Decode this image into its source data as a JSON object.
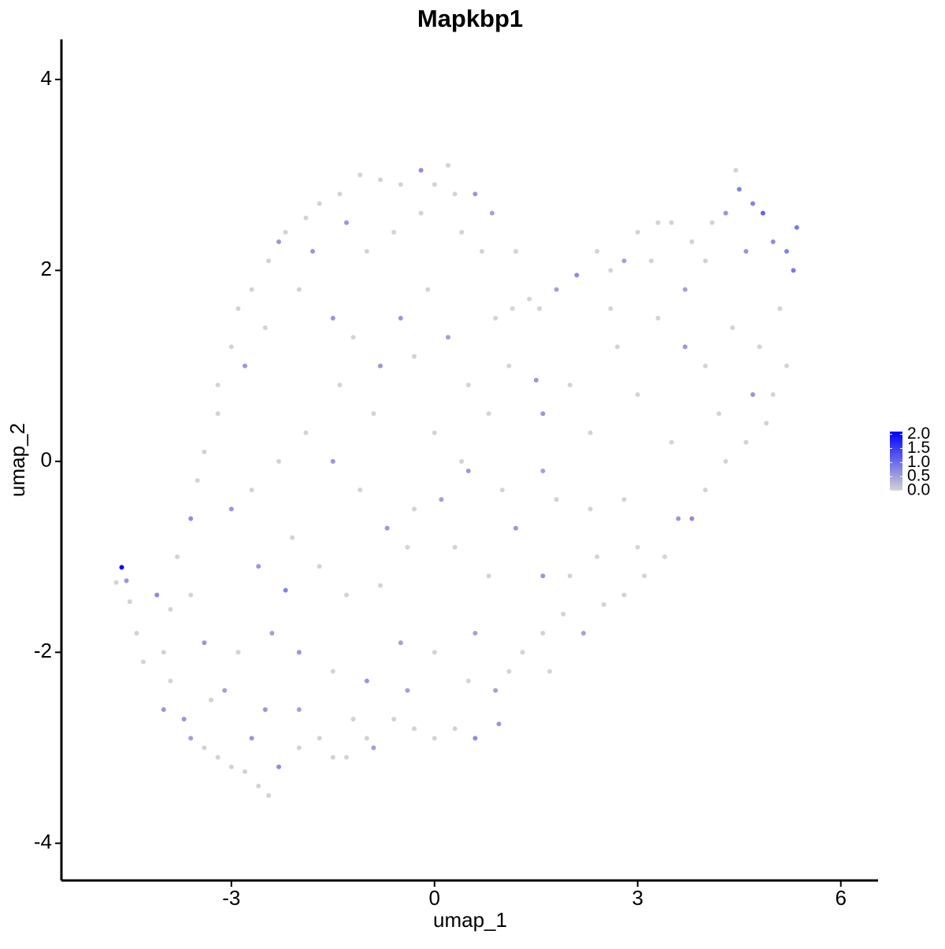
{
  "chart_data": {
    "type": "scatter",
    "title": "Mapkbp1",
    "x_label": "umap_1",
    "y_label": "umap_2",
    "xlim": [
      -5.51,
      6.55
    ],
    "ylim": [
      -4.39,
      4.42
    ],
    "xticks": [
      -3,
      0,
      3,
      6
    ],
    "yticks": [
      -4,
      -2,
      0,
      2,
      4
    ],
    "color_low": "#d3d3d3",
    "color_high": "#0000ff",
    "color_lim": [
      0,
      2.1
    ],
    "color_ticks": [
      {
        "value": 2,
        "label": "2.0"
      },
      {
        "value": 1.5,
        "label": "1.5"
      },
      {
        "value": 1,
        "label": "1.0"
      },
      {
        "value": 0.5,
        "label": "0.5"
      },
      {
        "value": 0,
        "label": "0.0"
      }
    ],
    "x": [
      -4.62,
      -4.55,
      -4.7,
      -4.5,
      -4.4,
      -4.1,
      -3.9,
      -4.0,
      -4.3,
      -4.0,
      -3.7,
      -3.6,
      -3.4,
      -3.2,
      -3.0,
      -2.8,
      -2.6,
      -2.45,
      -2.3,
      -2.0,
      -1.7,
      -1.5,
      -1.3,
      -1.0,
      -0.9,
      -0.6,
      -0.3,
      0,
      0.3,
      0.6,
      0.95,
      0.9,
      1.1,
      1.3,
      1.6,
      1.7,
      1.9,
      2.2,
      2.5,
      2.8,
      3.1,
      3.4,
      3.6,
      3.8,
      4.0,
      4.3,
      4.6,
      4.9,
      5.0,
      5.2,
      5.1,
      5.3,
      5.35,
      5.2,
      5.0,
      4.85,
      4.7,
      4.5,
      4.45,
      4.3,
      4.1,
      3.8,
      3.5,
      3.3,
      3.0,
      2.8,
      2.6,
      2.4,
      2.1,
      1.8,
      1.55,
      1.4,
      1.15,
      0.9,
      0.7,
      0.85,
      0.6,
      0.3,
      0.2,
      0.0,
      -0.2,
      -0.5,
      -0.8,
      -1.1,
      -1.4,
      -1.7,
      -1.9,
      -2.2,
      -2.45,
      -2.7,
      -2.9,
      -3.0,
      -3.2,
      -3.2,
      -3.4,
      -3.5,
      -3.6,
      -3.8,
      -3.6,
      -3.3,
      -2.8,
      -2.5,
      -2.0,
      -1.5,
      -1.2,
      -0.8,
      -0.5,
      -0.3,
      0.2,
      0.5,
      0.8,
      1.1,
      1.5,
      1.6,
      2.0,
      2.3,
      2.7,
      3.0,
      3.3,
      3.7,
      4.0,
      4.4,
      4.8,
      4.7,
      4.2,
      3.5,
      2.8,
      2.3,
      1.6,
      1.0,
      0.5,
      0.1,
      -0.3,
      -0.7,
      -1.1,
      -1.5,
      -1.9,
      -2.3,
      -2.7,
      -3.0,
      -2.6,
      -2.1,
      -1.7,
      -1.3,
      -0.8,
      -0.4,
      0.3,
      0.8,
      1.2,
      1.6,
      2.0,
      2.4,
      -2.2,
      -2.4,
      -2.0,
      -1.5,
      -1.0,
      -0.5,
      0.0,
      0.5,
      0.6,
      -2.9,
      -3.1,
      -2.5,
      -2.0,
      -2.7,
      -1.2,
      -0.4,
      -3.4,
      -3.9,
      -1.8,
      -1.0,
      -0.6,
      -0.2,
      0.4,
      -1.3,
      -2.3,
      -0.1,
      1.2,
      2.6,
      3.7,
      4.6,
      4.0,
      3.2,
      -0.9,
      0.0,
      0.4,
      -1.4,
      1.8,
      3.0
    ],
    "y": [
      -1.11,
      -1.25,
      -1.27,
      -1.47,
      -1.8,
      -1.4,
      -1.55,
      -2.0,
      -2.1,
      -2.6,
      -2.7,
      -2.9,
      -3.0,
      -3.1,
      -3.2,
      -3.25,
      -3.4,
      -3.5,
      -3.2,
      -3.0,
      -2.9,
      -3.1,
      -3.1,
      -2.9,
      -3.0,
      -2.7,
      -2.8,
      -2.9,
      -2.8,
      -2.9,
      -2.75,
      -2.4,
      -2.2,
      -2.0,
      -1.8,
      -2.2,
      -1.6,
      -1.8,
      -1.5,
      -1.4,
      -1.2,
      -1.0,
      -0.6,
      -0.6,
      -0.3,
      0,
      0.2,
      0.4,
      0.7,
      1.0,
      1.6,
      2.0,
      2.45,
      2.2,
      2.3,
      2.6,
      2.7,
      2.85,
      3.05,
      2.6,
      2.5,
      2.3,
      2.5,
      2.5,
      2.4,
      2.1,
      2.0,
      2.2,
      1.95,
      1.8,
      1.6,
      1.7,
      1.6,
      1.5,
      2.2,
      2.6,
      2.8,
      2.8,
      3.1,
      2.9,
      3.05,
      2.9,
      2.95,
      3.0,
      2.8,
      2.7,
      2.55,
      2.4,
      2.1,
      1.8,
      1.6,
      1.2,
      0.8,
      0.5,
      0.1,
      -0.2,
      -0.6,
      -1.0,
      -1.4,
      -2.5,
      1.0,
      1.4,
      1.8,
      1.5,
      1.3,
      1.0,
      1.5,
      1.1,
      1.3,
      0.8,
      0.5,
      1.0,
      0.85,
      0.5,
      0.8,
      0.3,
      1.2,
      0.7,
      1.5,
      1.2,
      1.0,
      1.4,
      1.2,
      0.7,
      0.5,
      0.2,
      -0.4,
      -0.5,
      -0.1,
      -0.3,
      -0.1,
      -0.4,
      -0.5,
      -0.7,
      -0.3,
      0.0,
      0.3,
      0.0,
      -0.3,
      -0.5,
      -1.1,
      -0.8,
      -1.1,
      -1.4,
      -1.3,
      -0.9,
      -0.9,
      -1.2,
      -0.7,
      -1.2,
      -1.2,
      -1.0,
      -1.35,
      -1.8,
      -2.0,
      -2.2,
      -2.3,
      -1.9,
      -2.0,
      -2.3,
      -1.8,
      -2.0,
      -2.4,
      -2.6,
      -2.6,
      -2.9,
      -2.7,
      -2.4,
      -1.9,
      -2.3,
      2.2,
      2.2,
      2.4,
      2.6,
      2.4,
      2.5,
      2.3,
      1.8,
      2.2,
      1.6,
      1.8,
      2.2,
      2.1,
      2.1,
      0.5,
      0.3,
      0.0,
      0.8,
      -0.4,
      -0.9
    ],
    "values": [
      2.1,
      0.6,
      0,
      0,
      0,
      0.7,
      0,
      0,
      0,
      0.6,
      0.6,
      0.5,
      0,
      0,
      0,
      0,
      0,
      0,
      0.7,
      0,
      0,
      0,
      0,
      0,
      0.5,
      0,
      0,
      0,
      0,
      0.7,
      0.6,
      0.5,
      0,
      0,
      0,
      0,
      0,
      0.5,
      0,
      0,
      0,
      0,
      0.6,
      0.7,
      0,
      0,
      0,
      0,
      0,
      0,
      0,
      0.9,
      0.9,
      0.8,
      0.7,
      1.1,
      0.8,
      0.8,
      0,
      0.6,
      0,
      0,
      0,
      0,
      0,
      0.5,
      0,
      0,
      0.7,
      0.5,
      0,
      0,
      0,
      0,
      0,
      0.5,
      0.6,
      0,
      0,
      0,
      0.7,
      0,
      0,
      0,
      0,
      0,
      0,
      0,
      0,
      0,
      0,
      0,
      0,
      0,
      0,
      0,
      0.7,
      0,
      0,
      0,
      0.6,
      0,
      0,
      0.6,
      0,
      0.6,
      0.6,
      0,
      0.5,
      0,
      0,
      0,
      0.6,
      0.6,
      0,
      0,
      0,
      0,
      0,
      0.6,
      0,
      0,
      0,
      0.6,
      0,
      0,
      0,
      0,
      0.5,
      0,
      0.6,
      0.5,
      0,
      0.6,
      0,
      0.6,
      0,
      0,
      0,
      0.6,
      0.6,
      0,
      0,
      0,
      0,
      0,
      0,
      0,
      0.6,
      0.6,
      0,
      0,
      0.8,
      0.5,
      0.6,
      0,
      0.6,
      0.5,
      0,
      0,
      0.5,
      0,
      0.5,
      0.6,
      0.5,
      0.6,
      0,
      0.5,
      0.6,
      0,
      0.6,
      0,
      0,
      0,
      0,
      0.6,
      0.6,
      0,
      0,
      0,
      0.5,
      0.6,
      0,
      0,
      0,
      0,
      0,
      0,
      0,
      0
    ]
  }
}
